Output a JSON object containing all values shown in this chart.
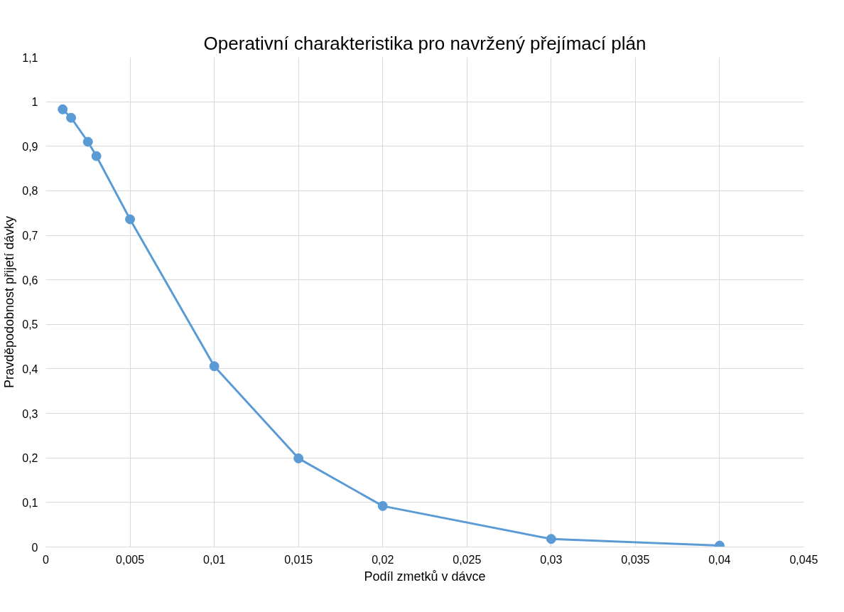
{
  "chart_data": {
    "type": "line",
    "title": "Operativní charakteristika pro navržený přejímací plán",
    "xlabel": "Podíl zmetků v dávce",
    "ylabel": "Pravděpodobnost přijetí dávky",
    "x": [
      0.001,
      0.0015,
      0.0025,
      0.003,
      0.005,
      0.01,
      0.015,
      0.02,
      0.03,
      0.04
    ],
    "series": [
      {
        "color": "#5b9bd5",
        "values": [
          0.983,
          0.964,
          0.91,
          0.878,
          0.736,
          0.406,
          0.199,
          0.092,
          0.018,
          0.003
        ]
      }
    ],
    "xlim": [
      0,
      0.045
    ],
    "xticks": [
      0,
      {
        "value": 0.005,
        "label": "0,005"
      },
      {
        "value": 0.01,
        "label": "0,01"
      },
      {
        "value": 0.015,
        "label": "0,015"
      },
      {
        "value": 0.02,
        "label": "0,02"
      },
      {
        "value": 0.025,
        "label": "0,025"
      },
      {
        "value": 0.03,
        "label": "0,03"
      },
      {
        "value": 0.035,
        "label": "0,035"
      },
      {
        "value": 0.04,
        "label": "0,04"
      },
      {
        "value": 0.045,
        "label": "0,045"
      }
    ],
    "ylim": [
      0,
      1.1
    ],
    "yticks": [
      0,
      {
        "value": 0.1,
        "label": "0,1"
      },
      {
        "value": 0.2,
        "label": "0,2"
      },
      {
        "value": 0.3,
        "label": "0,3"
      },
      {
        "value": 0.4,
        "label": "0,4"
      },
      {
        "value": 0.5,
        "label": "0,5"
      },
      {
        "value": 0.6,
        "label": "0,6"
      },
      {
        "value": 0.7,
        "label": "0,7"
      },
      {
        "value": 0.8,
        "label": "0,8"
      },
      {
        "value": 0.9,
        "label": "0,9"
      },
      1,
      {
        "value": 1.1,
        "label": "1,1"
      }
    ],
    "grid": true,
    "marker": "circle",
    "line_style": "solid"
  }
}
